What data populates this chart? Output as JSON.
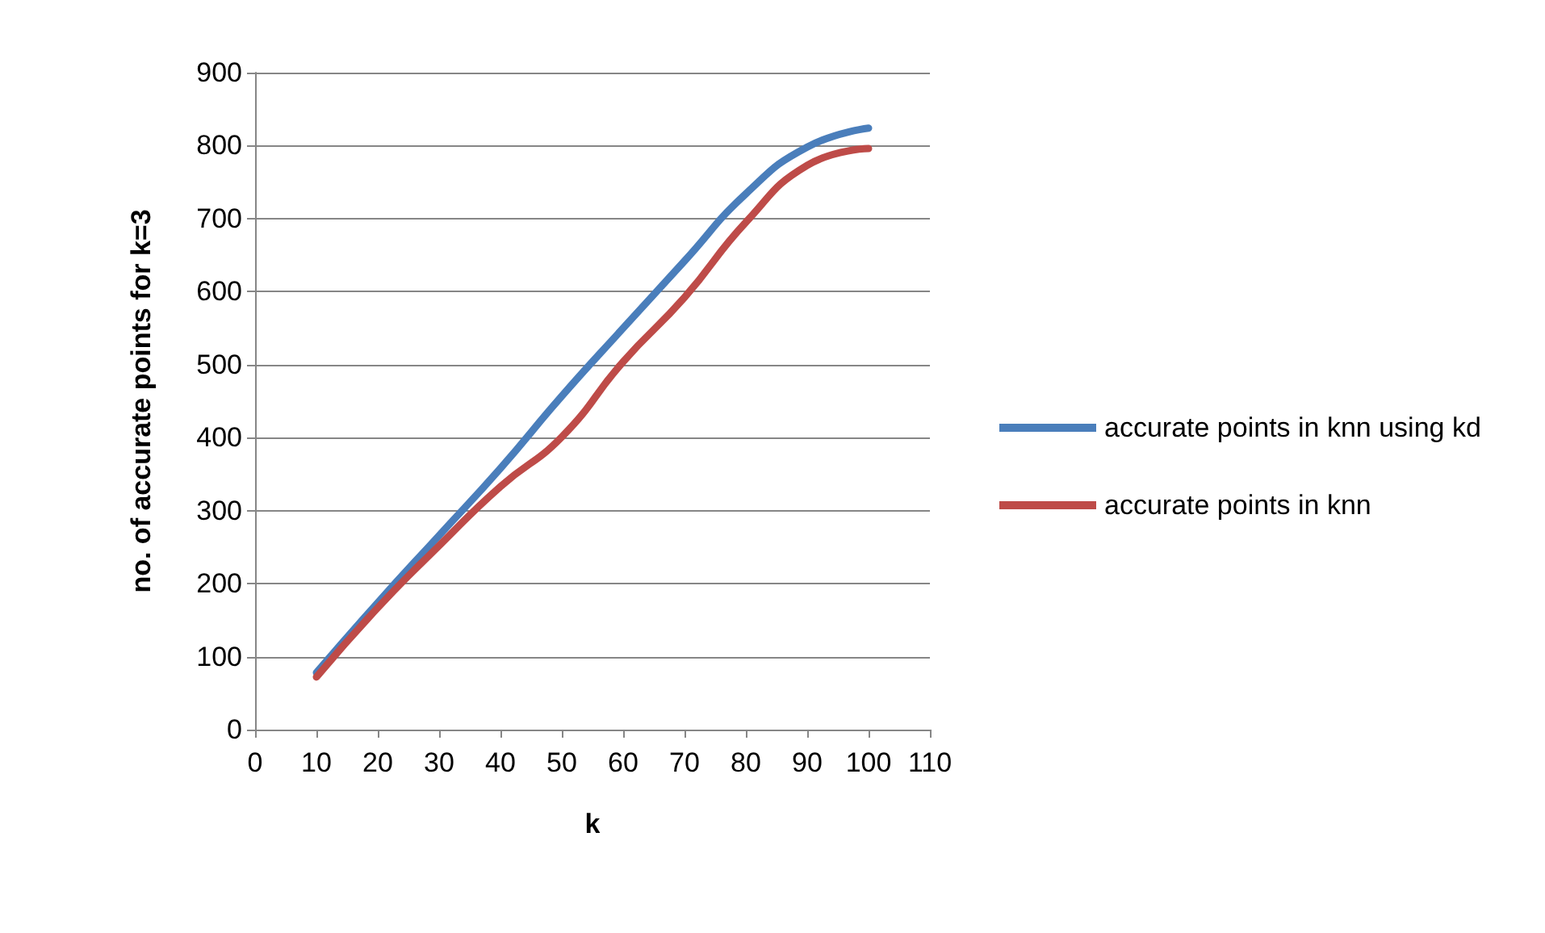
{
  "chart_data": {
    "type": "line",
    "xlabel": "k",
    "ylabel": "no. of accurate points for k=3",
    "x": [
      10,
      20,
      30,
      40,
      50,
      60,
      70,
      80,
      90,
      100
    ],
    "series": [
      {
        "name": "accurate points in knn using kd",
        "color": "#4a7ebb",
        "values": [
          78,
          174,
          266,
          358,
          457,
          550,
          642,
          734,
          798,
          824
        ]
      },
      {
        "name": "accurate points in knn",
        "color": "#be4b48",
        "values": [
          72,
          167,
          252,
          333,
          401,
          504,
          592,
          695,
          773,
          796
        ]
      }
    ],
    "xlim": [
      0,
      110
    ],
    "xticks": [
      0,
      10,
      20,
      30,
      40,
      50,
      60,
      70,
      80,
      90,
      100,
      110
    ],
    "ylim": [
      0,
      900
    ],
    "yticks": [
      0,
      100,
      200,
      300,
      400,
      500,
      600,
      700,
      800,
      900
    ],
    "grid": "y",
    "legend": "right",
    "marker": "none",
    "line_style": "solid"
  }
}
